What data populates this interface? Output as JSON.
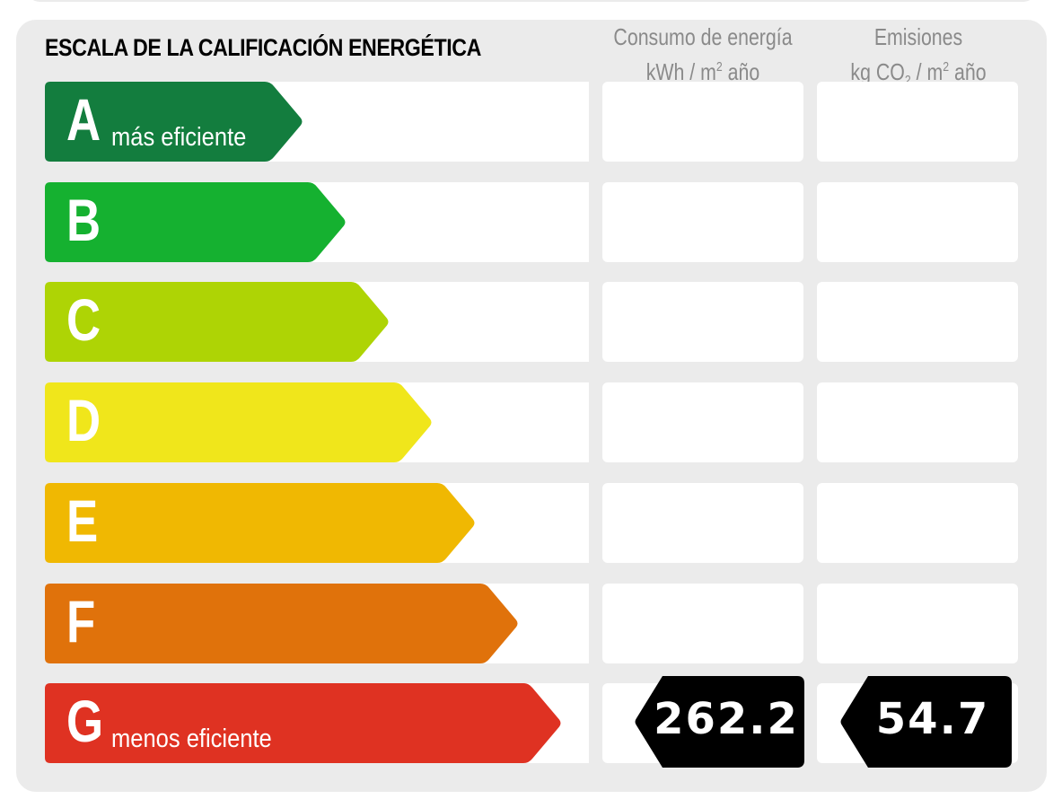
{
  "title": "ESCALA DE LA CALIFICACIÓN ENERGÉTICA",
  "columns": {
    "energy": {
      "line1": "Consumo de energía",
      "line2_pre": "kWh / m",
      "line2_sup": "2",
      "line2_post": " año"
    },
    "emissions": {
      "line1": "Emisiones",
      "line2_pre": "kg CO",
      "line2_sub": "2",
      "line2_mid": " / m",
      "line2_sup": "2",
      "line2_post": " año"
    }
  },
  "ratings": [
    {
      "letter": "A",
      "label": "más eficiente",
      "color": "#137d3e"
    },
    {
      "letter": "B",
      "label": "",
      "color": "#15b130"
    },
    {
      "letter": "C",
      "label": "",
      "color": "#aed405"
    },
    {
      "letter": "D",
      "label": "",
      "color": "#f0e61b"
    },
    {
      "letter": "E",
      "label": "",
      "color": "#f0b802"
    },
    {
      "letter": "F",
      "label": "",
      "color": "#e0720b"
    },
    {
      "letter": "G",
      "label": "menos eficiente",
      "color": "#df3222"
    }
  ],
  "current": {
    "rating": "G",
    "energy_value": "262.2",
    "emissions_value": "54.7"
  },
  "colors": {
    "panel": "#ebebeb",
    "cell": "#ffffff",
    "value_badge": "#000000",
    "header_text": "#8a8a8a"
  }
}
